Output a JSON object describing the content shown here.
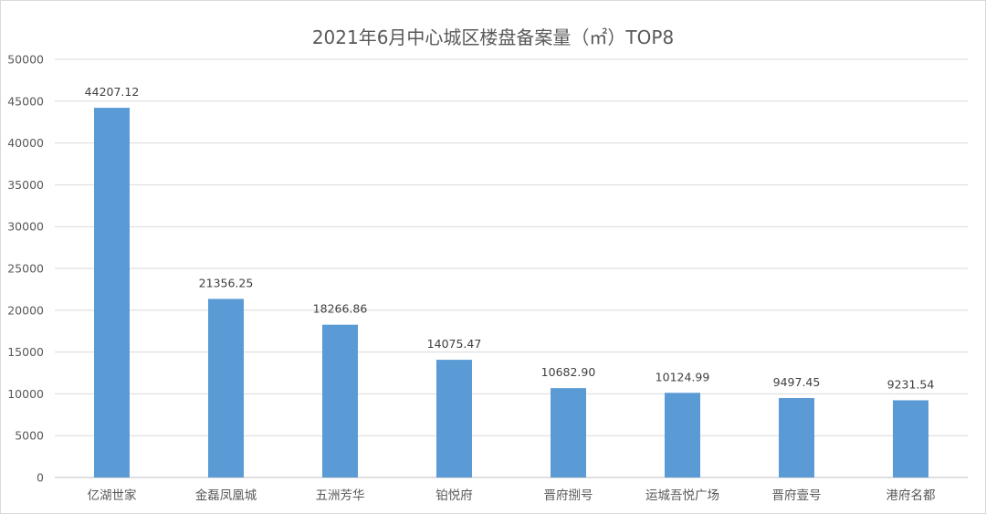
{
  "chart_data": {
    "type": "bar",
    "title": "2021年6月中心城区楼盘备案量（㎡）TOP8",
    "categories": [
      "亿湖世家",
      "金磊凤凰城",
      "五洲芳华",
      "铂悦府",
      "晋府捌号",
      "运城吾悦广场",
      "晋府壹号",
      "港府名都"
    ],
    "values": [
      44207.12,
      21356.25,
      18266.86,
      14075.47,
      10682.9,
      10124.99,
      9497.45,
      9231.54
    ],
    "value_labels": [
      "44207.12",
      "21356.25",
      "18266.86",
      "14075.47",
      "10682.90",
      "10124.99",
      "9497.45",
      "9231.54"
    ],
    "ylim": [
      0,
      50000
    ],
    "yticks": [
      "0",
      "5000",
      "10000",
      "15000",
      "20000",
      "25000",
      "30000",
      "35000",
      "40000",
      "45000",
      "50000"
    ],
    "xlabel": "",
    "ylabel": "",
    "grid": true,
    "bar_color": "#5b9bd5"
  }
}
